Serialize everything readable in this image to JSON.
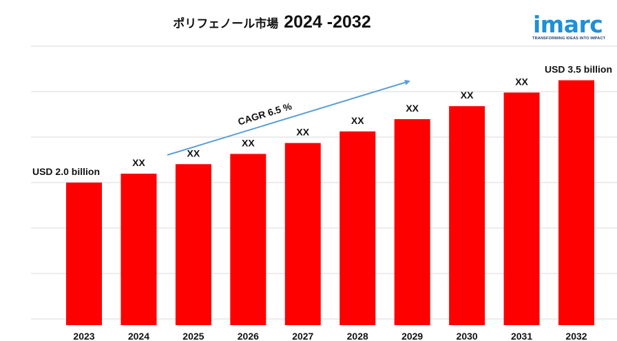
{
  "header": {
    "title_text": "ポリフェノール市場",
    "title_years": "2024 -2032"
  },
  "logo": {
    "word": "imarc",
    "tagline": "TRANSFORMING IDEAS INTO IMPACT",
    "color": "#1e90d6"
  },
  "chart_data": {
    "type": "bar",
    "categories": [
      "2023",
      "2024",
      "2025",
      "2026",
      "2027",
      "2028",
      "2029",
      "2030",
      "2031",
      "2032"
    ],
    "values": [
      2.0,
      2.13,
      2.27,
      2.42,
      2.58,
      2.75,
      2.93,
      3.12,
      3.32,
      3.5
    ],
    "data_labels": [
      "USD 2.0 billion",
      "XX",
      "XX",
      "XX",
      "XX",
      "XX",
      "XX",
      "XX",
      "XX",
      "USD 3.5 billion"
    ],
    "unit": "USD billion",
    "ylim": [
      0,
      4
    ],
    "grid": true,
    "bar_color": "#ff0000",
    "annotation": {
      "text": "CAGR 6.5 %",
      "arrow_color": "#5a9ed6"
    },
    "title": "ポリフェノール市場 2024 -2032",
    "xlabel": "",
    "ylabel": ""
  }
}
